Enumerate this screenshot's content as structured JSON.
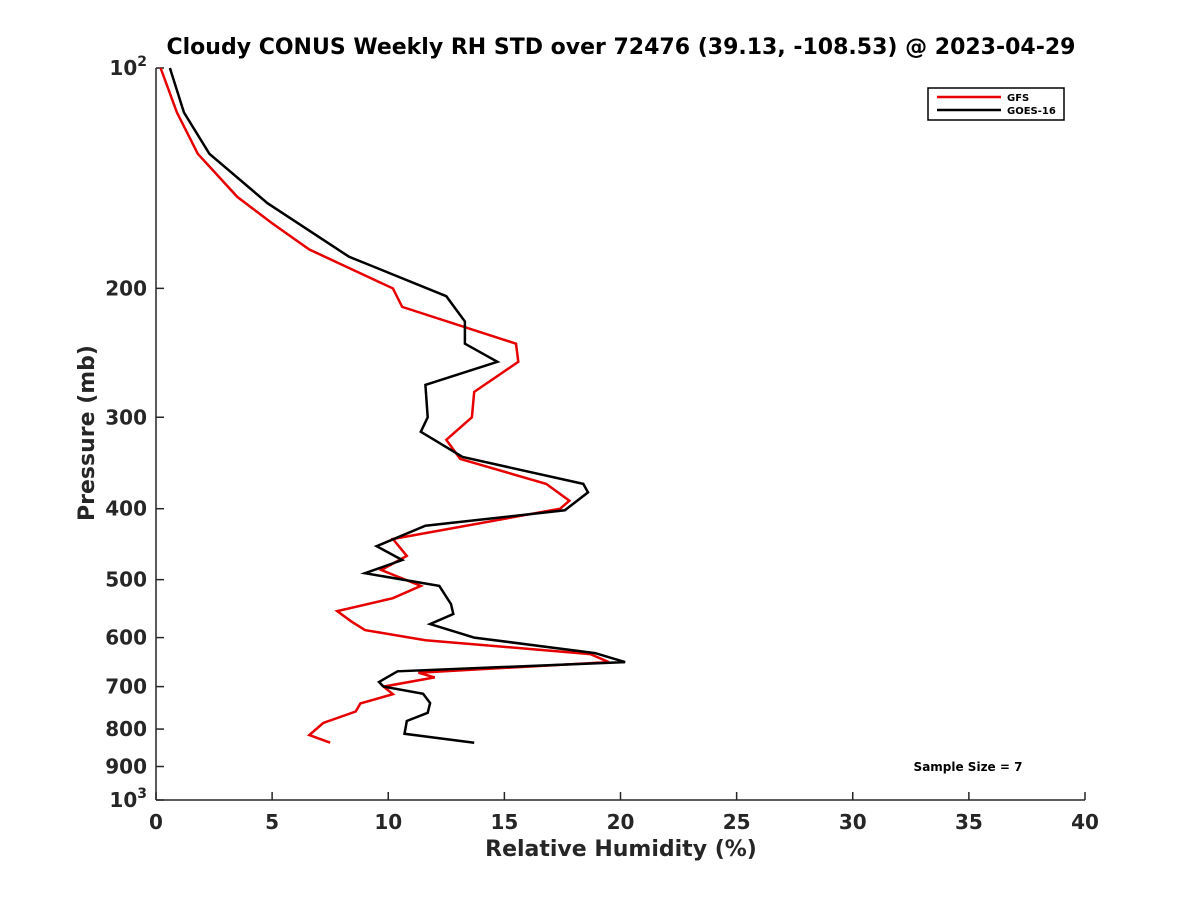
{
  "chart_data": {
    "type": "line",
    "title": "Cloudy CONUS Weekly RH STD over 72476 (39.13, -108.53) @ 2023-04-29",
    "xlabel": "Relative Humidity (%)",
    "ylabel": "Pressure (mb)",
    "xlim": [
      0,
      40
    ],
    "ylim": [
      100,
      1000
    ],
    "y_scale": "log",
    "y_reversed": true,
    "grid": false,
    "legend_placement": "top-right",
    "x_ticks": [
      0,
      5,
      10,
      15,
      20,
      25,
      30,
      35,
      40
    ],
    "x_tick_labels": [
      "0",
      "5",
      "10",
      "15",
      "20",
      "25",
      "30",
      "35",
      "40"
    ],
    "y_ticks": [
      100,
      200,
      300,
      400,
      500,
      600,
      700,
      800,
      900,
      1000
    ],
    "y_tick_labels": [
      {
        "base": "10",
        "exp": "2"
      },
      {
        "base": "200",
        "exp": ""
      },
      {
        "base": "300",
        "exp": ""
      },
      {
        "base": "400",
        "exp": ""
      },
      {
        "base": "500",
        "exp": ""
      },
      {
        "base": "600",
        "exp": ""
      },
      {
        "base": "700",
        "exp": ""
      },
      {
        "base": "800",
        "exp": ""
      },
      {
        "base": "900",
        "exp": ""
      },
      {
        "base": "10",
        "exp": "3"
      }
    ],
    "annotation": "Sample Size = 7",
    "series": [
      {
        "name": "GFS",
        "color": "#e60000",
        "points": [
          [
            0.2,
            100
          ],
          [
            0.9,
            115
          ],
          [
            1.8,
            131
          ],
          [
            3.5,
            150
          ],
          [
            5.0,
            163
          ],
          [
            6.6,
            177
          ],
          [
            10.2,
            200
          ],
          [
            10.6,
            212
          ],
          [
            15.5,
            238
          ],
          [
            15.6,
            252
          ],
          [
            13.7,
            277
          ],
          [
            13.6,
            300
          ],
          [
            12.5,
            322
          ],
          [
            13.1,
            342
          ],
          [
            16.8,
            370
          ],
          [
            17.8,
            390
          ],
          [
            17.4,
            400
          ],
          [
            10.2,
            440
          ],
          [
            10.8,
            464
          ],
          [
            9.7,
            485
          ],
          [
            11.4,
            510
          ],
          [
            10.2,
            530
          ],
          [
            7.8,
            552
          ],
          [
            8.4,
            570
          ],
          [
            9.0,
            586
          ],
          [
            11.6,
            605
          ],
          [
            18.7,
            632
          ],
          [
            19.5,
            648
          ],
          [
            11.3,
            670
          ],
          [
            12.0,
            680
          ],
          [
            9.8,
            700
          ],
          [
            10.2,
            717
          ],
          [
            8.8,
            738
          ],
          [
            8.6,
            757
          ],
          [
            7.2,
            785
          ],
          [
            6.6,
            815
          ],
          [
            7.5,
            835
          ]
        ]
      },
      {
        "name": "GOES-16",
        "color": "#000000",
        "points": [
          [
            0.6,
            100
          ],
          [
            1.2,
            115
          ],
          [
            2.3,
            131
          ],
          [
            4.8,
            153
          ],
          [
            8.3,
            181
          ],
          [
            12.5,
            205
          ],
          [
            13.3,
            222
          ],
          [
            13.3,
            238
          ],
          [
            14.7,
            252
          ],
          [
            11.6,
            271
          ],
          [
            11.7,
            300
          ],
          [
            11.4,
            314
          ],
          [
            13.2,
            340
          ],
          [
            18.4,
            370
          ],
          [
            18.6,
            380
          ],
          [
            17.6,
            402
          ],
          [
            11.6,
            422
          ],
          [
            9.5,
            450
          ],
          [
            10.6,
            470
          ],
          [
            9.0,
            490
          ],
          [
            12.2,
            510
          ],
          [
            12.7,
            540
          ],
          [
            12.8,
            557
          ],
          [
            11.8,
            575
          ],
          [
            13.7,
            600
          ],
          [
            18.9,
            630
          ],
          [
            20.2,
            648
          ],
          [
            10.4,
            667
          ],
          [
            9.6,
            690
          ],
          [
            9.8,
            700
          ],
          [
            11.5,
            716
          ],
          [
            11.8,
            737
          ],
          [
            11.7,
            760
          ],
          [
            10.8,
            780
          ],
          [
            10.7,
            812
          ],
          [
            13.7,
            835
          ]
        ]
      }
    ]
  }
}
